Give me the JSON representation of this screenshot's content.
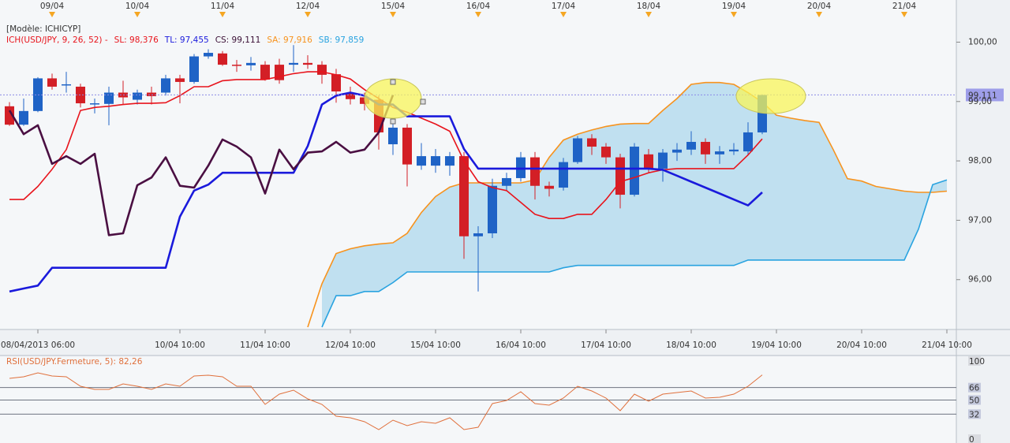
{
  "chart_data": [
    {
      "type": "candlestick",
      "model_label": "[Modèle: ICHICYP]",
      "legend": [
        {
          "text": "ICH(USD/JPY, 9, 26, 52) -",
          "color": "#e8141c"
        },
        {
          "text": "SL: 98,376",
          "color": "#e8141c"
        },
        {
          "text": "TL: 97,455",
          "color": "#1a1adc"
        },
        {
          "text": "CS: 99,111",
          "color": "#3a0f35"
        },
        {
          "text": "SA: 97,916",
          "color": "#f7931e"
        },
        {
          "text": "SB: 97,859",
          "color": "#29a3e0"
        }
      ],
      "up_color": "#1f63c6",
      "down_color": "#d31f26",
      "open": [
        98.92,
        98.61,
        98.84,
        99.39,
        99.27,
        99.25,
        98.95,
        98.96,
        99.15,
        99.03,
        99.15,
        99.15,
        99.39,
        99.33,
        99.76,
        99.81,
        99.62,
        99.61,
        99.62,
        99.62,
        99.62,
        99.65,
        99.62,
        99.46,
        99.15,
        99.07,
        99.03,
        98.28,
        98.56,
        97.92,
        97.92,
        97.92,
        98.08,
        96.73,
        96.78,
        97.58,
        97.71,
        98.06,
        97.58,
        97.55,
        97.98,
        98.38,
        98.24,
        98.06,
        97.43,
        98.11,
        97.87,
        98.14,
        98.19,
        98.32,
        98.11,
        98.16,
        98.16,
        98.48
      ],
      "high": [
        98.99,
        99.05,
        99.41,
        99.47,
        99.5,
        99.3,
        99.05,
        99.25,
        99.35,
        99.2,
        99.25,
        99.45,
        99.45,
        99.8,
        99.88,
        99.85,
        99.7,
        99.75,
        99.68,
        99.72,
        99.95,
        99.78,
        99.68,
        99.55,
        99.25,
        99.15,
        99.1,
        98.65,
        98.62,
        98.3,
        98.2,
        98.15,
        98.15,
        96.9,
        97.7,
        97.8,
        98.15,
        98.15,
        97.65,
        98.05,
        98.42,
        98.45,
        98.3,
        98.12,
        98.3,
        98.2,
        98.2,
        98.3,
        98.5,
        98.38,
        98.25,
        98.3,
        98.65,
        99.12
      ],
      "low": [
        98.59,
        98.59,
        98.82,
        99.2,
        99.15,
        98.9,
        98.8,
        98.6,
        98.95,
        98.95,
        98.95,
        99.1,
        98.97,
        99.3,
        99.72,
        99.6,
        99.5,
        99.52,
        99.35,
        99.3,
        99.5,
        99.55,
        99.3,
        98.98,
        98.95,
        98.85,
        98.19,
        98.1,
        97.57,
        97.85,
        97.8,
        97.75,
        96.35,
        95.8,
        96.7,
        97.5,
        97.65,
        97.35,
        97.4,
        97.5,
        97.95,
        98.1,
        97.95,
        97.2,
        97.4,
        97.8,
        97.65,
        98.0,
        98.1,
        97.95,
        97.95,
        98.1,
        98.1,
        98.45
      ],
      "close": [
        98.61,
        98.84,
        99.39,
        99.25,
        99.29,
        98.97,
        98.97,
        99.15,
        99.07,
        99.15,
        99.09,
        99.39,
        99.33,
        99.76,
        99.82,
        99.62,
        99.6,
        99.65,
        99.37,
        99.36,
        99.65,
        99.62,
        99.45,
        99.17,
        99.04,
        98.96,
        98.48,
        98.56,
        97.94,
        98.08,
        98.08,
        98.08,
        96.73,
        96.78,
        97.58,
        97.71,
        98.06,
        97.58,
        97.53,
        97.98,
        98.38,
        98.24,
        98.06,
        97.43,
        98.24,
        97.87,
        98.14,
        98.19,
        98.32,
        98.11,
        98.16,
        98.19,
        98.48,
        99.11
      ],
      "lines": [
        {
          "color": "#f7931e",
          "width": 1.6,
          "values": [
            null,
            null,
            null,
            null,
            null,
            null,
            null,
            null,
            null,
            null,
            null,
            null,
            null,
            null,
            null,
            null,
            null,
            null,
            null,
            null,
            null,
            95.2,
            95.93,
            96.44,
            96.52,
            96.57,
            96.6,
            96.62,
            96.78,
            97.13,
            97.4,
            97.56,
            97.63,
            97.63,
            97.63,
            97.63,
            97.63,
            97.68,
            98.06,
            98.35,
            98.45,
            98.52,
            98.58,
            98.62,
            98.63,
            98.63,
            98.85,
            99.05,
            99.29,
            99.32,
            99.32,
            99.29,
            99.15,
            98.99,
            98.77,
            98.72,
            98.68,
            98.65,
            98.19,
            97.7,
            97.66,
            97.57,
            97.53,
            97.49,
            97.47,
            97.47,
            97.49
          ]
        },
        {
          "color": "#29a3e0",
          "width": 1.6,
          "values": [
            null,
            null,
            null,
            null,
            null,
            null,
            null,
            null,
            null,
            null,
            null,
            null,
            null,
            null,
            null,
            null,
            null,
            null,
            null,
            null,
            null,
            null,
            95.2,
            95.73,
            95.73,
            95.8,
            95.8,
            95.95,
            96.13,
            96.13,
            96.13,
            96.13,
            96.13,
            96.13,
            96.13,
            96.13,
            96.13,
            96.13,
            96.13,
            96.2,
            96.24,
            96.24,
            96.24,
            96.24,
            96.24,
            96.24,
            96.24,
            96.24,
            96.24,
            96.24,
            96.24,
            96.24,
            96.33,
            96.33,
            96.33,
            96.33,
            96.33,
            96.33,
            96.33,
            96.33,
            96.33,
            96.33,
            96.33,
            96.33,
            96.85,
            97.6,
            97.68
          ]
        },
        {
          "color": "#e8141c",
          "width": 1.6,
          "values": [
            97.35,
            97.35,
            97.57,
            97.86,
            98.19,
            98.85,
            98.9,
            98.92,
            98.95,
            98.97,
            98.97,
            98.98,
            99.1,
            99.25,
            99.25,
            99.35,
            99.37,
            99.37,
            99.37,
            99.42,
            99.47,
            99.5,
            99.5,
            99.45,
            99.38,
            99.2,
            99.05,
            98.9,
            98.82,
            98.72,
            98.62,
            98.5,
            98.0,
            97.65,
            97.55,
            97.5,
            97.3,
            97.1,
            97.03,
            97.03,
            97.1,
            97.1,
            97.35,
            97.65,
            97.72,
            97.8,
            97.85,
            97.87,
            97.87,
            97.87,
            97.87,
            97.87,
            98.1,
            98.37,
            null,
            null,
            null,
            null,
            null,
            null,
            null,
            null,
            null,
            null,
            null,
            null,
            null
          ]
        },
        {
          "color": "#1a1adc",
          "width": 2.6,
          "values": [
            95.8,
            95.85,
            95.9,
            96.2,
            96.2,
            96.2,
            96.2,
            96.2,
            96.2,
            96.2,
            96.2,
            96.2,
            97.06,
            97.5,
            97.6,
            97.8,
            97.8,
            97.8,
            97.8,
            97.8,
            97.8,
            98.25,
            98.95,
            99.1,
            99.15,
            99.1,
            98.95,
            98.95,
            98.75,
            98.75,
            98.75,
            98.75,
            98.2,
            97.87,
            97.87,
            97.87,
            97.87,
            97.87,
            97.87,
            97.87,
            97.87,
            97.87,
            97.87,
            97.87,
            97.87,
            97.87,
            97.85,
            97.75,
            97.65,
            97.55,
            97.45,
            97.35,
            97.25,
            97.47,
            null,
            null,
            null,
            null,
            null,
            null,
            null,
            null,
            null,
            null,
            null,
            null,
            null
          ]
        },
        {
          "color": "#4a0f42",
          "width": 2.6,
          "values": [
            98.85,
            98.45,
            98.6,
            97.95,
            98.08,
            97.95,
            98.12,
            96.75,
            96.78,
            97.59,
            97.72,
            98.06,
            97.58,
            97.55,
            97.92,
            98.36,
            98.24,
            98.06,
            97.45,
            98.19,
            97.86,
            98.14,
            98.16,
            98.32,
            98.14,
            98.19,
            98.48,
            99.11,
            null,
            null,
            null,
            null,
            null,
            null,
            null,
            null,
            null,
            null,
            null,
            null,
            null,
            null,
            null,
            null,
            null,
            null,
            null,
            null,
            null,
            null,
            null,
            null,
            null,
            null,
            null,
            null,
            null,
            null,
            null,
            null,
            null,
            null,
            null,
            null,
            null,
            null,
            null
          ]
        }
      ],
      "cloud_color": "#b6dcee",
      "last_price": {
        "value": 99.111,
        "label": "99,111"
      },
      "last_price_color": "#8a8ae6",
      "xlim": [
        -0.667,
        66.667
      ],
      "ylim": [
        95.2,
        100.71
      ],
      "yticks": [
        {
          "value": 96,
          "label": "96,00"
        },
        {
          "value": 97,
          "label": "97,00"
        },
        {
          "value": 98,
          "label": "98,00"
        },
        {
          "value": 99,
          "label": "99,00"
        },
        {
          "value": 100,
          "label": "100,00"
        }
      ],
      "xticks": [
        {
          "value": 2,
          "label": "08/04/2013 06:00"
        },
        {
          "value": 12,
          "label": "10/04 10:00"
        },
        {
          "value": 18,
          "label": "11/04 10:00"
        },
        {
          "value": 24,
          "label": "12/04 10:00"
        },
        {
          "value": 30,
          "label": "15/04 10:00"
        },
        {
          "value": 36,
          "label": "16/04 10:00"
        },
        {
          "value": 42,
          "label": "17/04 10:00"
        },
        {
          "value": 48,
          "label": "18/04 10:00"
        },
        {
          "value": 54,
          "label": "19/04 10:00"
        },
        {
          "value": 60,
          "label": "20/04 10:00"
        },
        {
          "value": 66,
          "label": "21/04 10:00"
        }
      ],
      "top_xticks": [
        {
          "value": 3,
          "label": "09/04"
        },
        {
          "value": 9,
          "label": "10/04"
        },
        {
          "value": 15,
          "label": "11/04"
        },
        {
          "value": 21,
          "label": "12/04"
        },
        {
          "value": 27,
          "label": "15/04"
        },
        {
          "value": 33,
          "label": "16/04"
        },
        {
          "value": 39,
          "label": "17/04"
        },
        {
          "value": 45,
          "label": "18/04"
        },
        {
          "value": 51,
          "label": "19/04"
        },
        {
          "value": 57,
          "label": "20/04"
        },
        {
          "value": 63,
          "label": "21/04"
        }
      ],
      "top_marker_color": "#f5a623"
    },
    {
      "type": "line",
      "title": "RSI(USD/JPY.Fermeture, 5): 82,26",
      "color": "#e0703c",
      "values": [
        77.8,
        79.8,
        84.8,
        80.8,
        79.8,
        67.7,
        63.6,
        63.6,
        70.7,
        67.7,
        63.6,
        70.7,
        67.7,
        80.8,
        81.8,
        79.8,
        67.7,
        67.7,
        44.4,
        57.6,
        62.6,
        51.5,
        44.4,
        29.3,
        27.3,
        22.2,
        12.1,
        24.2,
        17.2,
        22.2,
        20.2,
        27.3,
        12.1,
        15.2,
        45.5,
        49.5,
        60.6,
        45.5,
        43.4,
        52.5,
        67.7,
        61.6,
        52.5,
        36.4,
        57.6,
        48.5,
        57.6,
        59.6,
        61.6,
        52.5,
        53.5,
        57.6,
        67.7,
        82.26
      ],
      "xlim": [
        -0.667,
        66.667
      ],
      "ylim": [
        0,
        100
      ],
      "yticks": [
        0,
        32,
        50,
        66,
        100
      ],
      "grid_lines": [
        32,
        50,
        66
      ]
    }
  ]
}
